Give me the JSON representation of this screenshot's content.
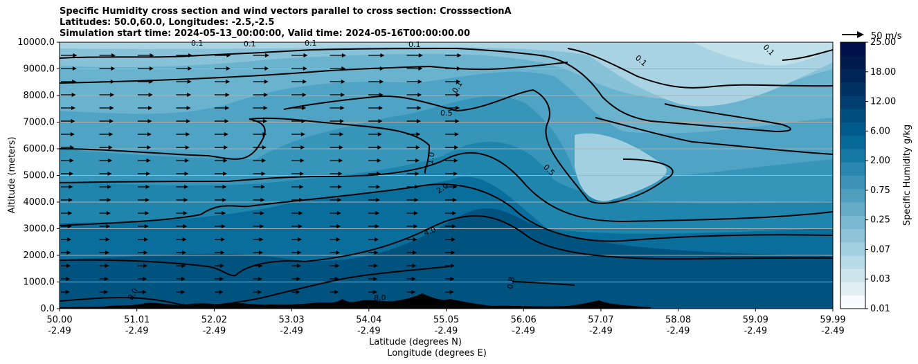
{
  "chart_data": {
    "type": "contour",
    "title_lines": [
      "Specific Humidity cross section and wind vectors parallel to cross section: CrosssectionA",
      "Latitudes: 50.0,60.0, Longitudes: -2.5,-2.5",
      "Simulation start time: 2024-05-13_00:00:00, Valid time: 2024-05-16T00:00:00.00"
    ],
    "ylabel": "Altitude (meters)",
    "xlabel_lines": [
      "Latitude (degrees N)",
      "Longitude (degrees E)"
    ],
    "ylim": [
      0,
      10000
    ],
    "y_ticks": [
      "0.0",
      "1000.0",
      "2000.0",
      "3000.0",
      "4000.0",
      "5000.0",
      "6000.0",
      "7000.0",
      "8000.0",
      "9000.0",
      "10000.0"
    ],
    "x_ticks": [
      [
        "50.00",
        "-2.49"
      ],
      [
        "51.01",
        "-2.49"
      ],
      [
        "52.02",
        "-2.49"
      ],
      [
        "53.03",
        "-2.49"
      ],
      [
        "54.04",
        "-2.49"
      ],
      [
        "55.05",
        "-2.49"
      ],
      [
        "56.06",
        "-2.49"
      ],
      [
        "57.07",
        "-2.49"
      ],
      [
        "58.08",
        "-2.49"
      ],
      [
        "59.09",
        "-2.49"
      ],
      [
        "59.99",
        "-2.49"
      ]
    ],
    "grid": "horizontal",
    "colorbar": {
      "label": "Specific Humidity g/kg",
      "ticks": [
        "0.01",
        "0.03",
        "0.07",
        "0.25",
        "0.75",
        "2.00",
        "6.00",
        "12.00",
        "18.00",
        "25.00"
      ],
      "colors": [
        "#f7fbff",
        "#e2f0f5",
        "#cde6ee",
        "#b7dbe7",
        "#a3d0e0",
        "#8fc4d8",
        "#7ab8d0",
        "#66acc8",
        "#519fbf",
        "#3c93b7",
        "#2a86ae",
        "#1679a4",
        "#06699a",
        "#005a8c",
        "#004d7e",
        "#003f70",
        "#003163",
        "#002556",
        "#001a4b",
        "#00104a"
      ]
    },
    "contour_labels": [
      "0.1",
      "0.1",
      "0.1",
      "0.1",
      "0.1",
      "0.5",
      "1.0",
      "2.0",
      "4.0",
      "8.0",
      "8.0",
      "0.8",
      "0.5",
      "0.1",
      "0.1"
    ],
    "wind_reference": "50 m/s"
  }
}
